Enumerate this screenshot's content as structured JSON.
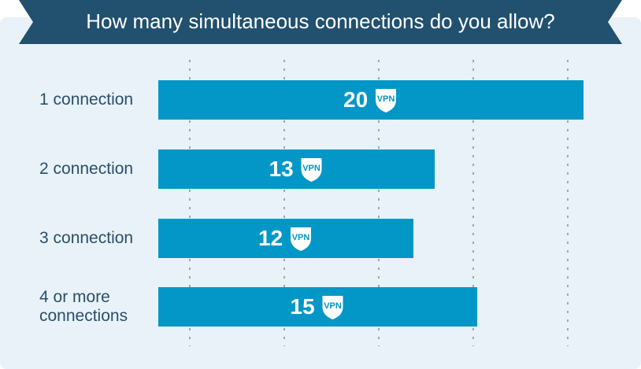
{
  "chart_data": {
    "type": "bar",
    "orientation": "horizontal",
    "title": "How many simultaneous connections do you allow?",
    "categories": [
      "1 connection",
      "2 connection",
      "3 connection",
      "4 or more\nconnections"
    ],
    "values": [
      20,
      13,
      12,
      15
    ],
    "xlim": [
      0,
      20
    ],
    "grid": true,
    "bar_color": "#0297c6",
    "value_icon": "shield-vpn-icon",
    "icon_text": "VPN"
  },
  "colors": {
    "banner": "#22506f",
    "panel": "#e9f2f9",
    "bar": "#0297c6",
    "gridline": "#9aa8b3",
    "label_text": "#2a4e6a"
  }
}
